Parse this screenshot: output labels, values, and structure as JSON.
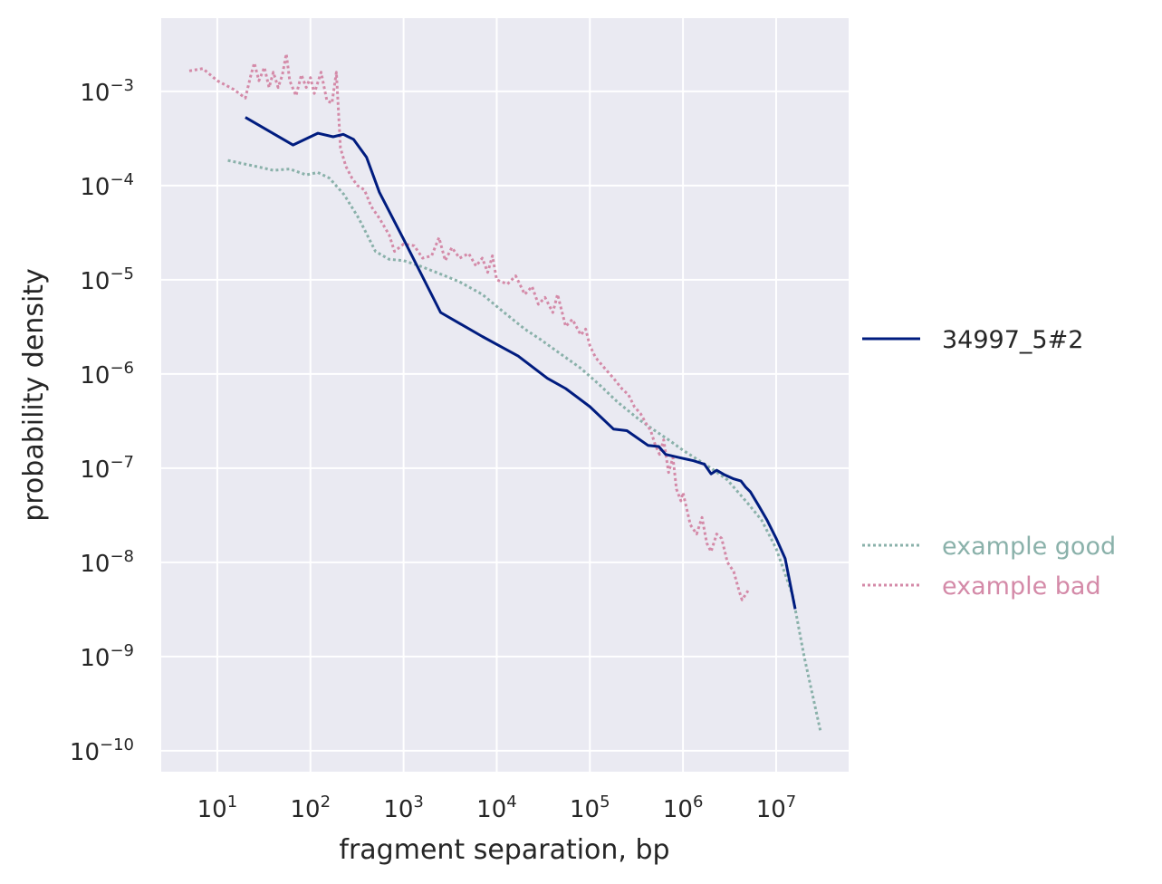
{
  "chart_data": {
    "type": "line",
    "xlabel": "fragment separation, bp",
    "ylabel": "probability density",
    "x_scale": "log",
    "y_scale": "log",
    "xlim": [
      2.5,
      60000000
    ],
    "ylim": [
      6e-11,
      0.006
    ],
    "grid": true,
    "x_ticks": [
      {
        "base": "10",
        "exp": "1",
        "value": 10
      },
      {
        "base": "10",
        "exp": "2",
        "value": 100
      },
      {
        "base": "10",
        "exp": "3",
        "value": 1000
      },
      {
        "base": "10",
        "exp": "4",
        "value": 10000
      },
      {
        "base": "10",
        "exp": "5",
        "value": 100000
      },
      {
        "base": "10",
        "exp": "6",
        "value": 1000000
      },
      {
        "base": "10",
        "exp": "7",
        "value": 10000000
      }
    ],
    "y_ticks": [
      {
        "base": "10",
        "exp": "−3",
        "value": 0.001
      },
      {
        "base": "10",
        "exp": "−4",
        "value": 0.0001
      },
      {
        "base": "10",
        "exp": "−5",
        "value": 1e-05
      },
      {
        "base": "10",
        "exp": "−6",
        "value": 1e-06
      },
      {
        "base": "10",
        "exp": "−7",
        "value": 1e-07
      },
      {
        "base": "10",
        "exp": "−8",
        "value": 1e-08
      },
      {
        "base": "10",
        "exp": "−9",
        "value": 1e-09
      },
      {
        "base": "10",
        "exp": "−10",
        "value": 1e-10
      }
    ],
    "legend_placement": "right",
    "series": [
      {
        "name": "34997_5#2",
        "color": "#001c7f",
        "style": "solid",
        "points": [
          [
            20,
            0.00053
          ],
          [
            65,
            0.00027
          ],
          [
            120,
            0.00036
          ],
          [
            175,
            0.00033
          ],
          [
            225,
            0.00035
          ],
          [
            290,
            0.00031
          ],
          [
            400,
            0.0002
          ],
          [
            550,
            8.5e-05
          ],
          [
            1000,
            2.7e-05
          ],
          [
            2500,
            4.5e-06
          ],
          [
            7000,
            2.5e-06
          ],
          [
            17000,
            1.55e-06
          ],
          [
            35000,
            9e-07
          ],
          [
            55000,
            7e-07
          ],
          [
            100000,
            4.5e-07
          ],
          [
            180000,
            2.6e-07
          ],
          [
            250000,
            2.5e-07
          ],
          [
            420000,
            1.75e-07
          ],
          [
            550000,
            1.7e-07
          ],
          [
            650000,
            1.4e-07
          ],
          [
            900000,
            1.3e-07
          ],
          [
            1300000,
            1.2e-07
          ],
          [
            1700000,
            1.1e-07
          ],
          [
            2000000,
            8.7e-08
          ],
          [
            2300000,
            9.5e-08
          ],
          [
            2800000,
            8.5e-08
          ],
          [
            3500000,
            7.7e-08
          ],
          [
            4200000,
            7.3e-08
          ],
          [
            4700000,
            6.3e-08
          ],
          [
            5300000,
            5.6e-08
          ],
          [
            6500000,
            4e-08
          ],
          [
            8000000,
            2.8e-08
          ],
          [
            10000000,
            1.8e-08
          ],
          [
            12500000,
            1.1e-08
          ],
          [
            16000000,
            3.2e-09
          ]
        ]
      },
      {
        "name": "example good",
        "color": "#8ab1aa",
        "style": "dotted",
        "points": [
          [
            13,
            0.000185
          ],
          [
            30,
            0.000155
          ],
          [
            40,
            0.000145
          ],
          [
            60,
            0.00015
          ],
          [
            90,
            0.00013
          ],
          [
            120,
            0.000138
          ],
          [
            160,
            0.00012
          ],
          [
            230,
            8e-05
          ],
          [
            330,
            4.5e-05
          ],
          [
            500,
            2e-05
          ],
          [
            700,
            1.65e-05
          ],
          [
            1000,
            1.6e-05
          ],
          [
            1500,
            1.4e-05
          ],
          [
            2500,
            1.15e-05
          ],
          [
            4000,
            9.5e-06
          ],
          [
            7000,
            7e-06
          ],
          [
            12000,
            4.5e-06
          ],
          [
            20000,
            3e-06
          ],
          [
            30000,
            2.3e-06
          ],
          [
            50000,
            1.6e-06
          ],
          [
            80000,
            1.15e-06
          ],
          [
            130000,
            7.5e-07
          ],
          [
            200000,
            5e-07
          ],
          [
            350000,
            3.2e-07
          ],
          [
            500000,
            2.5e-07
          ],
          [
            700000,
            2e-07
          ],
          [
            1000000,
            1.55e-07
          ],
          [
            1500000,
            1.2e-07
          ],
          [
            2000000,
            1e-07
          ],
          [
            3000000,
            7.5e-08
          ],
          [
            5000000,
            4.2e-08
          ],
          [
            7000000,
            2.8e-08
          ],
          [
            10000000,
            1.4e-08
          ],
          [
            15000000,
            4.5e-09
          ],
          [
            20000000,
            1e-09
          ],
          [
            30000000,
            1.6e-10
          ]
        ]
      },
      {
        "name": "example bad",
        "color": "#d48aa8",
        "style": "dotted",
        "points": [
          [
            5,
            0.00165
          ],
          [
            7,
            0.00175
          ],
          [
            10,
            0.0013
          ],
          [
            15,
            0.00105
          ],
          [
            20,
            0.00085
          ],
          [
            23,
            0.0015
          ],
          [
            25,
            0.002
          ],
          [
            28,
            0.0013
          ],
          [
            32,
            0.0018
          ],
          [
            36,
            0.0011
          ],
          [
            40,
            0.0016
          ],
          [
            45,
            0.0011
          ],
          [
            50,
            0.0015
          ],
          [
            55,
            0.0025
          ],
          [
            60,
            0.0013
          ],
          [
            70,
            0.0009
          ],
          [
            80,
            0.0015
          ],
          [
            90,
            0.0011
          ],
          [
            100,
            0.0014
          ],
          [
            110,
            0.00095
          ],
          [
            130,
            0.0016
          ],
          [
            150,
            0.0008
          ],
          [
            170,
            0.00075
          ],
          [
            190,
            0.0016
          ],
          [
            210,
            0.00025
          ],
          [
            240,
            0.00016
          ],
          [
            280,
            0.00012
          ],
          [
            320,
            0.0001
          ],
          [
            380,
            9e-05
          ],
          [
            450,
            6e-05
          ],
          [
            550,
            4.5e-05
          ],
          [
            700,
            3e-05
          ],
          [
            800,
            2e-05
          ],
          [
            1000,
            2.4e-05
          ],
          [
            1300,
            2.3e-05
          ],
          [
            1600,
            1.7e-05
          ],
          [
            2000,
            1.8e-05
          ],
          [
            2400,
            2.8e-05
          ],
          [
            2800,
            1.6e-05
          ],
          [
            3300,
            2.2e-05
          ],
          [
            4000,
            1.7e-05
          ],
          [
            5000,
            1.9e-05
          ],
          [
            6000,
            1.4e-05
          ],
          [
            7000,
            1.7e-05
          ],
          [
            8000,
            1.2e-05
          ],
          [
            9000,
            1.8e-05
          ],
          [
            10000,
            1e-05
          ],
          [
            13000,
            9e-06
          ],
          [
            16000,
            1.1e-05
          ],
          [
            20000,
            7e-06
          ],
          [
            24000,
            8.5e-06
          ],
          [
            28000,
            5.5e-06
          ],
          [
            33000,
            6.5e-06
          ],
          [
            40000,
            4.5e-06
          ],
          [
            45000,
            7e-06
          ],
          [
            55000,
            3.2e-06
          ],
          [
            65000,
            3.8e-06
          ],
          [
            80000,
            2.6e-06
          ],
          [
            90000,
            3e-06
          ],
          [
            100000,
            2e-06
          ],
          [
            115000,
            1.5e-06
          ],
          [
            130000,
            1.3e-06
          ],
          [
            150000,
            1.1e-06
          ],
          [
            180000,
            9e-07
          ],
          [
            220000,
            7e-07
          ],
          [
            260000,
            6e-07
          ],
          [
            300000,
            4.5e-07
          ],
          [
            350000,
            3.8e-07
          ],
          [
            400000,
            3e-07
          ],
          [
            450000,
            2.5e-07
          ],
          [
            500000,
            1.8e-07
          ],
          [
            560000,
            1.4e-07
          ],
          [
            620000,
            2e-07
          ],
          [
            700000,
            9e-08
          ],
          [
            780000,
            1.3e-07
          ],
          [
            850000,
            6e-08
          ],
          [
            950000,
            4.5e-08
          ],
          [
            1000000,
            5.5e-08
          ],
          [
            1200000,
            2.5e-08
          ],
          [
            1400000,
            2e-08
          ],
          [
            1600000,
            3e-08
          ],
          [
            1800000,
            1.6e-08
          ],
          [
            2000000,
            1.3e-08
          ],
          [
            2300000,
            2e-08
          ],
          [
            2600000,
            1.8e-08
          ],
          [
            3000000,
            1e-08
          ],
          [
            3500000,
            8e-09
          ],
          [
            4000000,
            5e-09
          ],
          [
            4300000,
            4e-09
          ],
          [
            5000000,
            5e-09
          ]
        ]
      }
    ]
  }
}
